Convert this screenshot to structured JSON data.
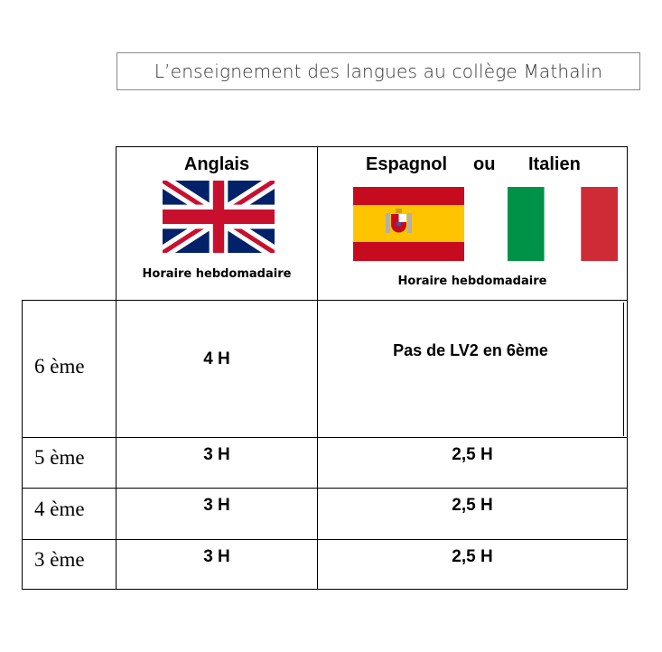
{
  "title": "L’enseignement des langues au collège Mathalin",
  "columns": {
    "english": {
      "header": "Anglais",
      "subheader": "Horaire hebdomadaire",
      "flag_icon": "uk-flag-icon"
    },
    "lv2": {
      "header_spanish": "Espagnol",
      "header_or": "ou",
      "header_italian": "Italien",
      "subheader": "Horaire hebdomadaire",
      "flag_icons": [
        "spain-flag-icon",
        "italy-flag-icon"
      ]
    }
  },
  "rows": [
    {
      "label": "6 ème",
      "english": "4 H",
      "lv2": "Pas de LV2 en 6ème"
    },
    {
      "label": "5 ème",
      "english": "3 H",
      "lv2": "2,5 H"
    },
    {
      "label": "4 ème",
      "english": "3 H",
      "lv2": "2,5 H"
    },
    {
      "label": "3 ème",
      "english": "3 H",
      "lv2": "2,5 H"
    }
  ],
  "colors": {
    "uk_blue": "#012169",
    "uk_red": "#C8102E",
    "spain_red": "#C60B1E",
    "spain_yellow": "#FFC400",
    "italy_green": "#009246",
    "italy_red": "#CE2B37"
  }
}
